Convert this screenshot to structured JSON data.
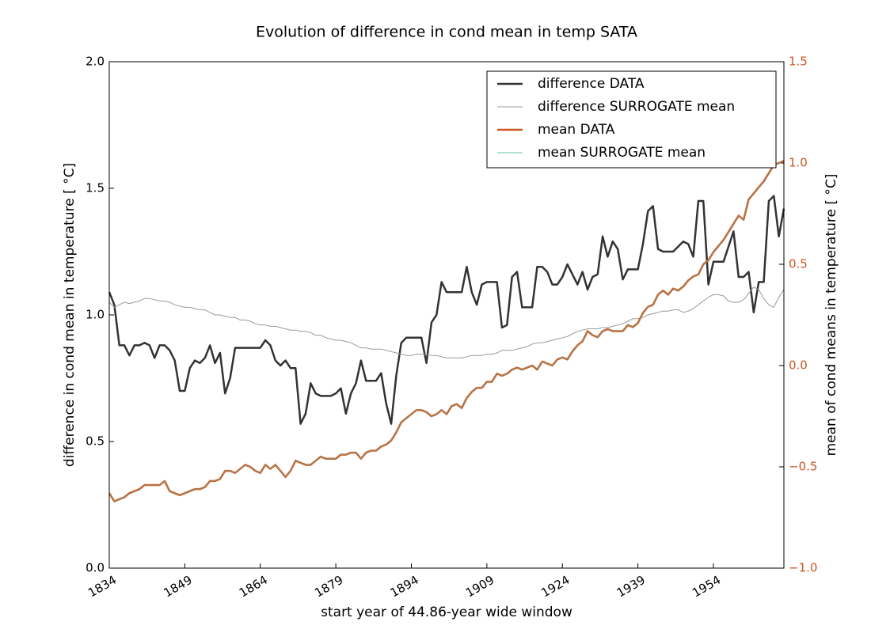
{
  "chart_data": {
    "type": "line",
    "title": "Evolution of difference in cond mean in temp SATA",
    "xlabel": "start year of 44.86-year wide window",
    "ylabel": "difference in cond mean in temperature [$^\\circ$C]",
    "y2label": "mean of cond means in temperature [$^\\circ$C]",
    "ylabel_text": "difference in cond mean in temperature [ °C]",
    "y2label_text": "mean of cond means in temperature [ °C]",
    "xlim": [
      1834,
      1968
    ],
    "xticks": [
      1834,
      1849,
      1864,
      1879,
      1894,
      1909,
      1924,
      1939,
      1954
    ],
    "ylim": [
      0,
      2.0
    ],
    "yticks": [
      {
        "value": 0,
        "label": "0.0"
      },
      0.5,
      {
        "value": 1,
        "label": "1.0"
      },
      1.5,
      {
        "value": 2,
        "label": "2.0"
      }
    ],
    "y2lim": [
      -1.0,
      1.5
    ],
    "y2ticks": [
      {
        "value": -1,
        "label": "−1.0"
      },
      {
        "value": -0.5,
        "label": "−0.5"
      },
      {
        "value": 0,
        "label": "0.0"
      },
      0.5,
      {
        "value": 1,
        "label": "1.0"
      },
      1.5
    ],
    "y2tick_color": "#cc5520",
    "legend": "upper right",
    "x": [
      1834,
      1835,
      1836,
      1837,
      1838,
      1839,
      1840,
      1841,
      1842,
      1843,
      1844,
      1845,
      1846,
      1847,
      1848,
      1849,
      1850,
      1851,
      1852,
      1853,
      1854,
      1855,
      1856,
      1857,
      1858,
      1859,
      1860,
      1861,
      1862,
      1863,
      1864,
      1865,
      1866,
      1867,
      1868,
      1869,
      1870,
      1871,
      1872,
      1873,
      1874,
      1875,
      1876,
      1877,
      1878,
      1879,
      1880,
      1881,
      1882,
      1883,
      1884,
      1885,
      1886,
      1887,
      1888,
      1889,
      1890,
      1891,
      1892,
      1893,
      1894,
      1895,
      1896,
      1897,
      1898,
      1899,
      1900,
      1901,
      1902,
      1903,
      1904,
      1905,
      1906,
      1907,
      1908,
      1909,
      1910,
      1911,
      1912,
      1913,
      1914,
      1915,
      1916,
      1917,
      1918,
      1919,
      1920,
      1921,
      1922,
      1923,
      1924,
      1925,
      1926,
      1927,
      1928,
      1929,
      1930,
      1931,
      1932,
      1933,
      1934,
      1935,
      1936,
      1937,
      1938,
      1939,
      1940,
      1941,
      1942,
      1943,
      1944,
      1945,
      1946,
      1947,
      1948,
      1949,
      1950,
      1951,
      1952,
      1953,
      1954,
      1955,
      1956,
      1957,
      1958,
      1959,
      1960,
      1961,
      1962,
      1963,
      1964,
      1965,
      1966,
      1967,
      1968
    ],
    "series": [
      {
        "name": "difference DATA",
        "color": "#333333",
        "width": 2.5,
        "values": [
          1.09,
          1.04,
          0.88,
          0.88,
          0.84,
          0.88,
          0.88,
          0.89,
          0.88,
          0.83,
          0.88,
          0.88,
          0.86,
          0.82,
          0.7,
          0.7,
          0.79,
          0.82,
          0.81,
          0.83,
          0.88,
          0.81,
          0.85,
          0.69,
          0.75,
          0.87,
          0.87,
          0.87,
          0.87,
          0.87,
          0.87,
          0.9,
          0.88,
          0.82,
          0.8,
          0.82,
          0.79,
          0.79,
          0.57,
          0.61,
          0.73,
          0.69,
          0.68,
          0.68,
          0.68,
          0.69,
          0.71,
          0.61,
          0.69,
          0.73,
          0.82,
          0.74,
          0.74,
          0.74,
          0.77,
          0.65,
          0.57,
          0.76,
          0.89,
          0.91,
          0.91,
          0.91,
          0.91,
          0.81,
          0.97,
          1.0,
          1.13,
          1.09,
          1.09,
          1.09,
          1.09,
          1.19,
          1.09,
          1.04,
          1.12,
          1.13,
          1.13,
          1.13,
          0.95,
          0.96,
          1.15,
          1.17,
          1.03,
          1.03,
          1.03,
          1.19,
          1.19,
          1.17,
          1.12,
          1.12,
          1.15,
          1.2,
          1.16,
          1.12,
          1.17,
          1.1,
          1.15,
          1.16,
          1.31,
          1.23,
          1.29,
          1.26,
          1.14,
          1.18,
          1.18,
          1.18,
          1.28,
          1.41,
          1.43,
          1.26,
          1.25,
          1.25,
          1.25,
          1.27,
          1.29,
          1.28,
          1.23,
          1.45,
          1.45,
          1.12,
          1.21,
          1.21,
          1.21,
          1.27,
          1.33,
          1.15,
          1.15,
          1.17,
          1.01,
          1.13,
          1.13,
          1.45,
          1.47,
          1.31,
          1.42
        ]
      },
      {
        "name": "difference SURROGATE mean",
        "color": "#999999",
        "width": 1,
        "values": [
          1.05,
          1.03,
          1.04,
          1.05,
          1.045,
          1.05,
          1.055,
          1.065,
          1.065,
          1.06,
          1.055,
          1.055,
          1.05,
          1.04,
          1.035,
          1.03,
          1.03,
          1.025,
          1.02,
          1.02,
          1.01,
          1.0,
          1.0,
          0.995,
          0.99,
          0.99,
          0.98,
          0.98,
          0.975,
          0.965,
          0.96,
          0.96,
          0.955,
          0.955,
          0.95,
          0.945,
          0.94,
          0.94,
          0.935,
          0.935,
          0.93,
          0.92,
          0.92,
          0.91,
          0.905,
          0.9,
          0.9,
          0.895,
          0.89,
          0.88,
          0.87,
          0.87,
          0.865,
          0.865,
          0.865,
          0.86,
          0.855,
          0.85,
          0.845,
          0.84,
          0.84,
          0.845,
          0.845,
          0.845,
          0.84,
          0.84,
          0.835,
          0.83,
          0.83,
          0.83,
          0.83,
          0.835,
          0.84,
          0.84,
          0.84,
          0.845,
          0.845,
          0.85,
          0.86,
          0.86,
          0.86,
          0.865,
          0.87,
          0.875,
          0.885,
          0.89,
          0.89,
          0.895,
          0.9,
          0.905,
          0.91,
          0.915,
          0.925,
          0.935,
          0.94,
          0.945,
          0.945,
          0.945,
          0.95,
          0.95,
          0.955,
          0.96,
          0.965,
          0.975,
          0.985,
          0.985,
          0.99,
          1.0,
          1.005,
          1.01,
          1.015,
          1.015,
          1.02,
          1.02,
          1.01,
          1.015,
          1.025,
          1.04,
          1.055,
          1.07,
          1.08,
          1.08,
          1.075,
          1.055,
          1.05,
          1.05,
          1.06,
          1.085,
          1.11,
          1.1,
          1.065,
          1.04,
          1.03,
          1.07,
          1.1
        ]
      },
      {
        "name": "mean DATA",
        "color": "#cc5520",
        "width": 2.5,
        "axis": "y2",
        "values": [
          -0.63,
          -0.67,
          -0.66,
          -0.65,
          -0.63,
          -0.62,
          -0.61,
          -0.59,
          -0.59,
          -0.59,
          -0.59,
          -0.57,
          -0.62,
          -0.63,
          -0.64,
          -0.63,
          -0.62,
          -0.61,
          -0.61,
          -0.6,
          -0.57,
          -0.57,
          -0.56,
          -0.52,
          -0.52,
          -0.53,
          -0.51,
          -0.49,
          -0.5,
          -0.52,
          -0.53,
          -0.49,
          -0.51,
          -0.49,
          -0.52,
          -0.55,
          -0.52,
          -0.47,
          -0.48,
          -0.49,
          -0.49,
          -0.47,
          -0.45,
          -0.46,
          -0.46,
          -0.46,
          -0.44,
          -0.44,
          -0.43,
          -0.43,
          -0.46,
          -0.43,
          -0.42,
          -0.42,
          -0.4,
          -0.39,
          -0.37,
          -0.33,
          -0.28,
          -0.26,
          -0.24,
          -0.22,
          -0.22,
          -0.23,
          -0.25,
          -0.24,
          -0.22,
          -0.24,
          -0.2,
          -0.19,
          -0.21,
          -0.16,
          -0.13,
          -0.11,
          -0.11,
          -0.08,
          -0.08,
          -0.04,
          -0.05,
          -0.04,
          -0.02,
          -0.01,
          -0.02,
          -0.01,
          0.0,
          -0.02,
          0.02,
          0.01,
          0.0,
          0.03,
          0.04,
          0.03,
          0.07,
          0.1,
          0.12,
          0.17,
          0.15,
          0.14,
          0.17,
          0.18,
          0.17,
          0.17,
          0.17,
          0.2,
          0.19,
          0.21,
          0.26,
          0.29,
          0.3,
          0.35,
          0.37,
          0.35,
          0.38,
          0.37,
          0.39,
          0.42,
          0.44,
          0.45,
          0.5,
          0.52,
          0.56,
          0.59,
          0.62,
          0.66,
          0.7,
          0.74,
          0.72,
          0.82,
          0.85,
          0.88,
          0.91,
          0.95,
          0.99,
          1.0,
          1.01
        ]
      },
      {
        "name": "mean SURROGATE mean",
        "color": "#66c2a5",
        "width": 1,
        "axis": "y2",
        "values": [
          -0.63,
          -0.67,
          -0.66,
          -0.65,
          -0.63,
          -0.62,
          -0.61,
          -0.59,
          -0.59,
          -0.59,
          -0.59,
          -0.57,
          -0.62,
          -0.63,
          -0.64,
          -0.63,
          -0.62,
          -0.61,
          -0.61,
          -0.6,
          -0.57,
          -0.57,
          -0.56,
          -0.52,
          -0.52,
          -0.53,
          -0.51,
          -0.49,
          -0.5,
          -0.52,
          -0.53,
          -0.49,
          -0.51,
          -0.49,
          -0.52,
          -0.55,
          -0.52,
          -0.47,
          -0.48,
          -0.49,
          -0.49,
          -0.47,
          -0.45,
          -0.46,
          -0.46,
          -0.46,
          -0.44,
          -0.44,
          -0.43,
          -0.43,
          -0.46,
          -0.43,
          -0.42,
          -0.42,
          -0.4,
          -0.39,
          -0.37,
          -0.33,
          -0.28,
          -0.26,
          -0.24,
          -0.22,
          -0.22,
          -0.23,
          -0.25,
          -0.24,
          -0.22,
          -0.24,
          -0.2,
          -0.19,
          -0.21,
          -0.16,
          -0.13,
          -0.11,
          -0.11,
          -0.08,
          -0.08,
          -0.04,
          -0.05,
          -0.04,
          -0.02,
          -0.01,
          -0.02,
          -0.01,
          0.0,
          -0.02,
          0.02,
          0.01,
          0.0,
          0.03,
          0.04,
          0.03,
          0.07,
          0.1,
          0.12,
          0.17,
          0.15,
          0.14,
          0.17,
          0.18,
          0.17,
          0.17,
          0.17,
          0.2,
          0.19,
          0.21,
          0.26,
          0.29,
          0.3,
          0.35,
          0.37,
          0.35,
          0.38,
          0.37,
          0.39,
          0.42,
          0.44,
          0.45,
          0.5,
          0.52,
          0.56,
          0.59,
          0.62,
          0.66,
          0.7,
          0.74,
          0.72,
          0.82,
          0.85,
          0.88,
          0.91,
          0.95,
          0.99,
          1.0,
          1.01
        ]
      }
    ]
  }
}
